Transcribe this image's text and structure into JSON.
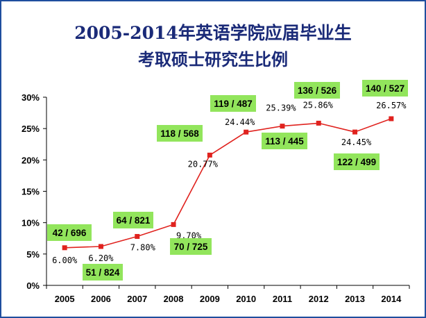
{
  "chart_data": {
    "type": "line",
    "title_line1": "2005-2014年英语学院应届毕业生",
    "title_line2": "考取硕士研究生比例",
    "xlabel": "",
    "ylabel": "",
    "ylim": [
      0,
      30
    ],
    "y_ticks": [
      "0%",
      "5%",
      "10%",
      "15%",
      "20%",
      "25%",
      "30%"
    ],
    "categories": [
      "2005",
      "2006",
      "2007",
      "2008",
      "2009",
      "2010",
      "2011",
      "2012",
      "2013",
      "2014"
    ],
    "series": [
      {
        "values": [
          6.0,
          6.2,
          7.8,
          9.7,
          20.77,
          24.44,
          25.39,
          25.86,
          24.45,
          26.57
        ],
        "labels": [
          "6.00%",
          "6.20%",
          "7.80%",
          "9.70%",
          "20.77%",
          "24.44%",
          "25.39%",
          "25.86%",
          "24.45%",
          "26.57%"
        ],
        "color": "#e0221e"
      }
    ],
    "annotations": [
      "42 / 696",
      "51 / 824",
      "64 / 821",
      "70 / 725",
      "118 / 568",
      "119 / 487",
      "113 / 445",
      "136 / 526",
      "122 / 499",
      "140 / 527"
    ],
    "annotation_color": "#92e55c",
    "grid": false,
    "legend": "none"
  }
}
